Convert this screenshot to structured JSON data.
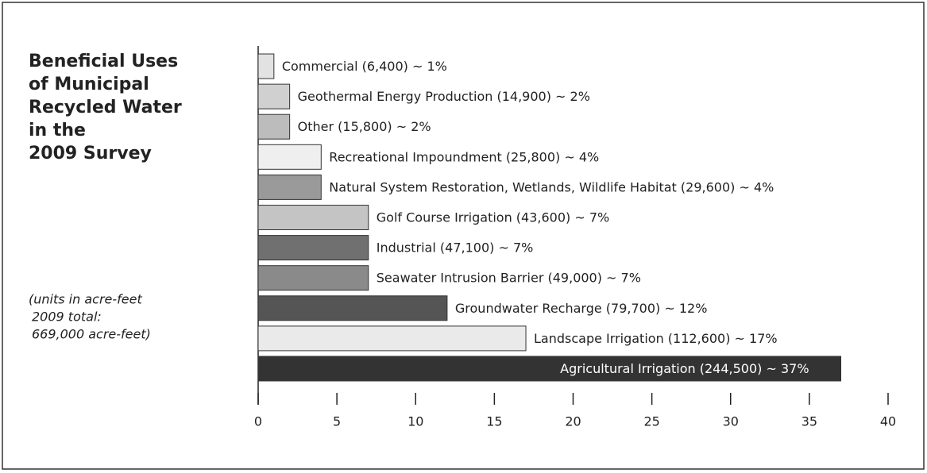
{
  "chart_data": {
    "type": "hbar",
    "title": [
      "Beneficial Uses",
      "of Municipal",
      "Recycled Water",
      "in the",
      "2009 Survey"
    ],
    "annotation": [
      "(units in acre-feet",
      "2009 total:",
      "669,000 acre-feet)"
    ],
    "categories": [
      "Commercial (6,400) ~ 1%",
      "Geothermal Energy Production (14,900) ~ 2%",
      "Other (15,800) ~ 2%",
      "Recreational Impoundment (25,800) ~ 4%",
      "Natural System Restoration, Wetlands, Wildlife Habitat (29,600) ~ 4%",
      "Golf Course Irrigation (43,600) ~ 7%",
      "Industrial (47,100) ~ 7%",
      "Seawater Intrusion Barrier (49,000) ~ 7%",
      "Groundwater Recharge (79,700) ~ 12%",
      "Landscape Irrigation (112,600) ~ 17%",
      "Agricultural Irrigation (244,500) ~ 37%"
    ],
    "values": [
      1,
      2,
      2,
      4,
      4,
      7,
      7,
      7,
      12,
      17,
      37
    ],
    "colors": [
      "#e2e2e2",
      "#d0d0d0",
      "#bcbcbc",
      "#efefef",
      "#9a9a9a",
      "#c4c4c4",
      "#707070",
      "#8a8a8a",
      "#555555",
      "#eaeaea",
      "#333333"
    ],
    "xlim": [
      0,
      40
    ],
    "xticks": [
      0,
      5,
      10,
      15,
      20,
      25,
      30,
      35,
      40
    ]
  }
}
